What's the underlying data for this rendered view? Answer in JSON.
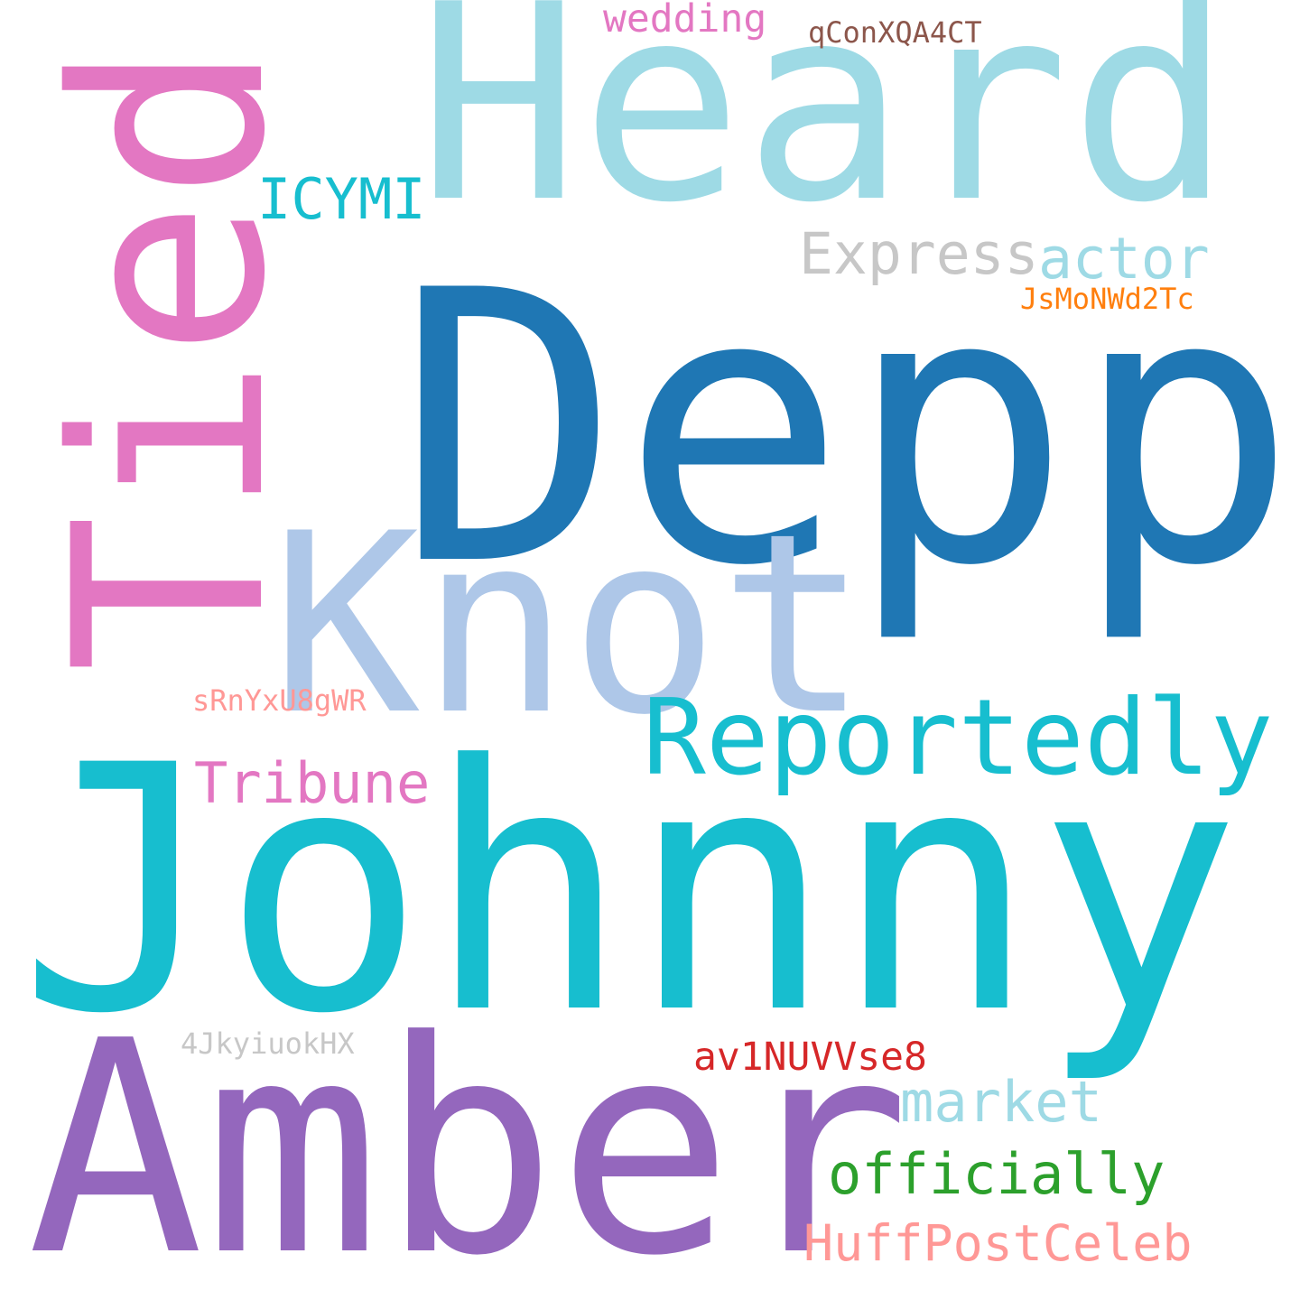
{
  "word_cloud": {
    "words": [
      {
        "text": "Heard",
        "color": "#9edae5"
      },
      {
        "text": "Depp",
        "color": "#1f77b4"
      },
      {
        "text": "Tied",
        "color": "#e377c2"
      },
      {
        "text": "Knot",
        "color": "#aec7e8"
      },
      {
        "text": "Johnny",
        "color": "#17becf"
      },
      {
        "text": "Amber",
        "color": "#9467bd"
      },
      {
        "text": "Reportedly",
        "color": "#17becf"
      },
      {
        "text": "ICYMI",
        "color": "#17becf"
      },
      {
        "text": "Express",
        "color": "#c7c7c7"
      },
      {
        "text": "actor",
        "color": "#9edae5"
      },
      {
        "text": "wedding",
        "color": "#e377c2"
      },
      {
        "text": "qConXQA4CT",
        "color": "#8c564b"
      },
      {
        "text": "JsMoNWd2Tc",
        "color": "#ff7f0e"
      },
      {
        "text": "sRnYxU8gWR",
        "color": "#ff9896"
      },
      {
        "text": "Tribune",
        "color": "#e377c2"
      },
      {
        "text": "4JkyiuokHX",
        "color": "#c7c7c7"
      },
      {
        "text": "av1NUVVse8",
        "color": "#d62728"
      },
      {
        "text": "market",
        "color": "#9edae5"
      },
      {
        "text": "officially",
        "color": "#2ca02c"
      },
      {
        "text": "HuffPostCeleb",
        "color": "#ff9896"
      }
    ]
  }
}
